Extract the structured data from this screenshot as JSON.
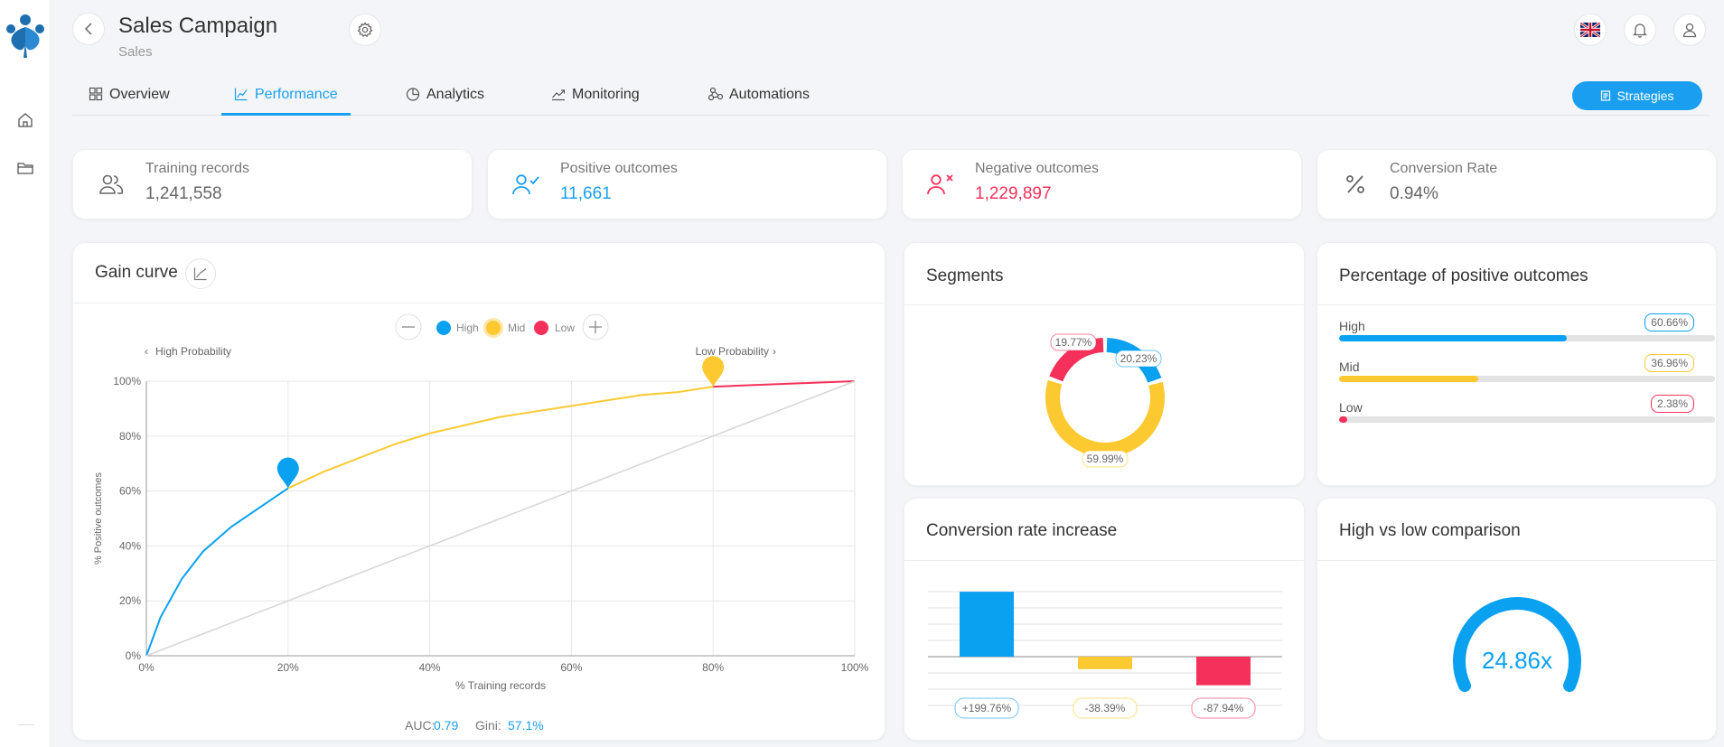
{
  "colors": {
    "accent": "#1a9ff0",
    "high": "#0aa1f1",
    "mid": "#fcc931",
    "low": "#f5305a"
  },
  "header": {
    "title": "Sales Campaign",
    "subtitle": "Sales",
    "language_flag": "uk-flag"
  },
  "tabs": [
    {
      "label": "Overview",
      "icon": "grid-icon"
    },
    {
      "label": "Performance",
      "icon": "chart-line-icon",
      "active": true
    },
    {
      "label": "Analytics",
      "icon": "pie-icon"
    },
    {
      "label": "Monitoring",
      "icon": "trend-icon"
    },
    {
      "label": "Automations",
      "icon": "nodes-icon"
    }
  ],
  "strategies_label": "Strategies",
  "stats": [
    {
      "label": "Training records",
      "value": "1,241,558",
      "color": "#666666"
    },
    {
      "label": "Positive outcomes",
      "value": "11,661",
      "color": "#1a9ff0"
    },
    {
      "label": "Negative outcomes",
      "value": "1,229,897",
      "color": "#f5305a"
    },
    {
      "label": "Conversion Rate",
      "value": "0.94%",
      "color": "#666666"
    }
  ],
  "gain_curve": {
    "title": "Gain curve",
    "legend": [
      "High",
      "Mid",
      "Low"
    ],
    "left_hint": "High Probability",
    "right_hint": "Low Probability",
    "auc_label": "AUC:",
    "auc_value": "0.79",
    "gini_label": "Gini:",
    "gini_value": "57.1%"
  },
  "chart_data": [
    {
      "type": "line",
      "title": "Gain curve",
      "xlabel": "% Training records",
      "ylabel": "% Positive outcomes",
      "xlim": [
        0,
        100
      ],
      "ylim": [
        0,
        100
      ],
      "x_ticks": [
        "0%",
        "20%",
        "40%",
        "60%",
        "80%",
        "100%"
      ],
      "y_ticks": [
        "0%",
        "20%",
        "40%",
        "60%",
        "80%",
        "100%"
      ],
      "grid": true,
      "series": [
        {
          "name": "High",
          "x": [
            0,
            2,
            5,
            8,
            12,
            16,
            20
          ],
          "y": [
            0,
            14,
            28,
            38,
            47,
            54,
            61
          ]
        },
        {
          "name": "Mid",
          "x": [
            20,
            25,
            30,
            35,
            40,
            45,
            50,
            55,
            60,
            65,
            70,
            75,
            80
          ],
          "y": [
            61,
            67,
            72,
            77,
            81,
            84,
            87,
            89,
            91,
            93,
            95,
            96,
            98
          ]
        },
        {
          "name": "Low",
          "x": [
            80,
            85,
            90,
            95,
            100
          ],
          "y": [
            98,
            98.5,
            99,
            99.5,
            100
          ]
        },
        {
          "x": [
            0,
            100
          ],
          "y": [
            0,
            100
          ]
        }
      ],
      "markers": [
        {
          "series": "High",
          "x": 20,
          "y": 61
        },
        {
          "series": "Mid",
          "x": 80,
          "y": 98
        }
      ]
    },
    {
      "type": "pie",
      "title": "Segments",
      "labels": [
        "High",
        "Mid",
        "Low"
      ],
      "values": [
        20.23,
        59.99,
        19.77
      ],
      "value_labels": [
        "20.23%",
        "59.99%",
        "19.77%"
      ]
    },
    {
      "type": "bar",
      "title": "Percentage of positive outcomes",
      "categories": [
        "High",
        "Mid",
        "Low"
      ],
      "values": [
        60.66,
        36.96,
        2.38
      ],
      "value_labels": [
        "60.66%",
        "36.96%",
        "2.38%"
      ]
    },
    {
      "type": "bar",
      "title": "Conversion rate increase",
      "categories": [
        "High",
        "Mid",
        "Low"
      ],
      "values": [
        199.76,
        -38.39,
        -87.94
      ],
      "value_labels": [
        "+199.76%",
        "-38.39%",
        "-87.94%"
      ]
    },
    {
      "type": "gauge",
      "title": "High vs low comparison",
      "value": 24.86,
      "value_label": "24.86x"
    }
  ]
}
